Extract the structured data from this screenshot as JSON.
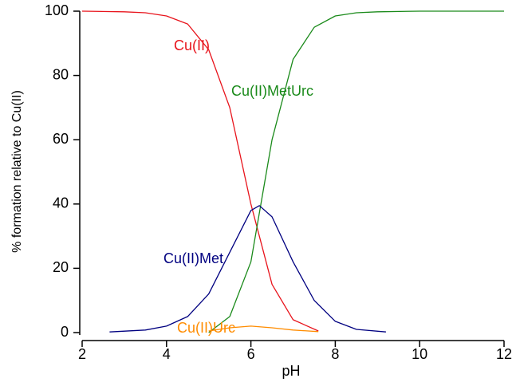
{
  "chart_data": {
    "type": "line",
    "xlabel": "pH",
    "ylabel": "% formation relative to Cu(II)",
    "xlim": [
      2,
      12
    ],
    "xticks": [
      2,
      4,
      6,
      8,
      10,
      12
    ],
    "ylim": [
      0,
      100
    ],
    "yticks": [
      0,
      20,
      40,
      60,
      80,
      100
    ],
    "grid": false,
    "series": [
      {
        "name": "Cu(II)",
        "color": "#e8141c",
        "x": [
          2,
          3,
          3.5,
          4,
          4.5,
          5,
          5.5,
          6,
          6.5,
          7,
          7.6
        ],
        "values": [
          100,
          99.8,
          99.5,
          98.5,
          96,
          88,
          70,
          40,
          15,
          4,
          0.5
        ]
      },
      {
        "name": "Cu(II)MetUrc",
        "color": "#1a8a1a",
        "x": [
          5,
          5.5,
          6,
          6.5,
          7,
          7.5,
          8,
          8.5,
          9,
          10,
          12
        ],
        "values": [
          0,
          5,
          22,
          60,
          85,
          95,
          98.5,
          99.5,
          99.8,
          100,
          100
        ]
      },
      {
        "name": "Cu(II)Met",
        "color": "#000080",
        "x": [
          2.65,
          3.5,
          4,
          4.5,
          5,
          5.5,
          6,
          6.2,
          6.5,
          7,
          7.5,
          8,
          8.5,
          9.2
        ],
        "values": [
          0.2,
          0.8,
          2,
          5,
          12,
          25,
          38,
          39.5,
          36,
          22,
          10,
          3.5,
          1,
          0.2
        ]
      },
      {
        "name": "Cu(II)Urc",
        "color": "#ff8c00",
        "x": [
          5,
          5.5,
          6,
          6.5,
          7,
          7.6
        ],
        "values": [
          0.5,
          1.5,
          2,
          1.5,
          0.8,
          0.3
        ]
      }
    ]
  }
}
